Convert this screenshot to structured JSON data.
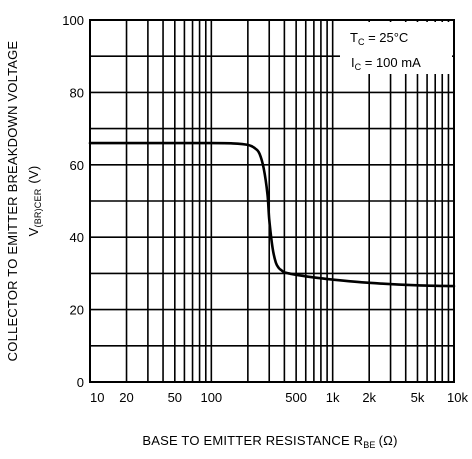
{
  "chart_data": {
    "type": "line",
    "x_scale": "log",
    "xlim": [
      10,
      10000
    ],
    "ylim": [
      0,
      100
    ],
    "grid": true,
    "x_ticks": [
      {
        "value": 10,
        "label": "10"
      },
      {
        "value": 20,
        "label": "20"
      },
      {
        "value": 50,
        "label": "50"
      },
      {
        "value": 100,
        "label": "100"
      },
      {
        "value": 500,
        "label": "500"
      },
      {
        "value": 1000,
        "label": "1k"
      },
      {
        "value": 2000,
        "label": "2k"
      },
      {
        "value": 5000,
        "label": "5k"
      },
      {
        "value": 10000,
        "label": "10k"
      }
    ],
    "y_ticks": [
      {
        "value": 0,
        "label": "0"
      },
      {
        "value": 20,
        "label": "20"
      },
      {
        "value": 40,
        "label": "40"
      },
      {
        "value": 60,
        "label": "60"
      },
      {
        "value": 80,
        "label": "80"
      },
      {
        "value": 100,
        "label": "100"
      }
    ],
    "xlabel_main": "BASE TO EMITTER RESISTANCE R",
    "xlabel_sub": "BE",
    "xlabel_unit": "(Ω)",
    "ylabel_line1": "COLLECTOR TO EMITTER BREAKDOWN VOLTAGE",
    "ylabel_line2_main": "V",
    "ylabel_line2_sub": "(BR)CER",
    "ylabel_line2_unit": "(V)",
    "annotations": [
      {
        "main": "T",
        "sub": "C",
        "rest": " = 25°C"
      },
      {
        "main": "I",
        "sub": "C",
        "rest": " = 100 mA"
      }
    ],
    "series": [
      {
        "x": [
          10,
          50,
          100,
          150,
          200,
          230,
          250,
          270,
          290,
          300,
          320,
          340,
          360,
          380,
          400,
          450,
          500,
          700,
          1000,
          2000,
          5000,
          10000
        ],
        "y": [
          66,
          66,
          66,
          65.9,
          65.5,
          64.5,
          63,
          59,
          52,
          45,
          37,
          33,
          31.5,
          30.8,
          30.3,
          29.9,
          29.6,
          28.9,
          28.3,
          27.4,
          26.7,
          26.5
        ]
      }
    ]
  }
}
